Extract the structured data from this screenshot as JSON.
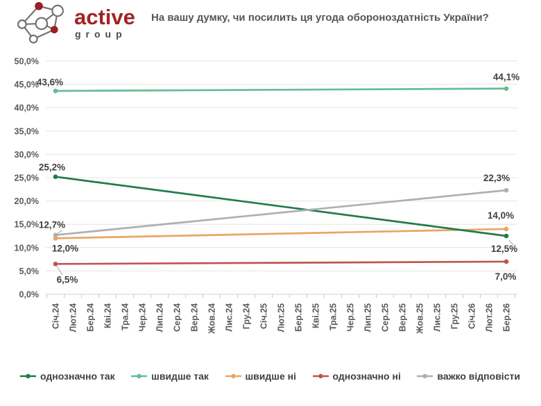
{
  "logo": {
    "brand": "active",
    "subtext": "group"
  },
  "chart_data": {
    "type": "line",
    "title": "На вашу думку, чи посилить ця угода обороноздатність України?",
    "x_categories": [
      "Січ.24",
      "Лют.24",
      "Бер.24",
      "Кві.24",
      "Тра.24",
      "Чер.24",
      "Лип.24",
      "Сер.24",
      "Вер.24",
      "Жов.24",
      "Лис.24",
      "Гру.24",
      "Січ.25",
      "Лют.25",
      "Бер.25",
      "Кві.25",
      "Тра.25",
      "Чер.25",
      "Лип.25",
      "Сер.25",
      "Вер.25",
      "Жов.25",
      "Лис.25",
      "Гру.25",
      "Січ.26",
      "Лют.26",
      "Бер.26"
    ],
    "y_axis": {
      "min": 0,
      "max": 50,
      "step": 5,
      "grid": true,
      "tick_labels": [
        "0,0%",
        "5,0%",
        "10,0%",
        "15,0%",
        "20,0%",
        "25,0%",
        "30,0%",
        "35,0%",
        "40,0%",
        "45,0%",
        "50,0%"
      ]
    },
    "legend_position": "bottom",
    "x_label_rotation": -90,
    "series": [
      {
        "name": "однозначно так",
        "color": "#217A4B",
        "points": [
          {
            "x": "Січ.24",
            "y": 25.2
          },
          {
            "x": "Бер.26",
            "y": 12.5
          }
        ],
        "point_labels": [
          {
            "text": "25,2%",
            "dx": -5,
            "dy": -9
          },
          {
            "text": "12,5%",
            "dx": -3,
            "dy": 23,
            "leader": [
              4,
              6,
              11,
              14
            ]
          }
        ]
      },
      {
        "name": "швидше так",
        "color": "#62BE92",
        "points": [
          {
            "x": "Січ.24",
            "y": 43.6
          },
          {
            "x": "Бер.26",
            "y": 44.1
          }
        ],
        "point_labels": [
          {
            "text": "43,6%",
            "dx": -8,
            "dy": -8
          },
          {
            "text": "44,1%",
            "dx": 0,
            "dy": -12
          }
        ]
      },
      {
        "name": "швидше ні",
        "color": "#E7A765",
        "points": [
          {
            "x": "Січ.24",
            "y": 12.0
          },
          {
            "x": "Бер.26",
            "y": 14.0
          }
        ],
        "point_labels": [
          {
            "text": "12,0%",
            "dx": 14,
            "dy": 19
          },
          {
            "text": "14,0%",
            "dx": -8,
            "dy": -15
          }
        ]
      },
      {
        "name": "однозначно ні",
        "color": "#BE554F",
        "points": [
          {
            "x": "Січ.24",
            "y": 6.5
          },
          {
            "x": "Бер.26",
            "y": 7.0
          }
        ],
        "point_labels": [
          {
            "text": "6,5%",
            "dx": 17,
            "dy": 27,
            "leader": [
              10,
              16,
              2,
              3
            ]
          },
          {
            "text": "7,0%",
            "dx": -1,
            "dy": 26
          }
        ]
      },
      {
        "name": "важко відповісти",
        "color": "#AFAFAF",
        "points": [
          {
            "x": "Січ.24",
            "y": 12.7
          },
          {
            "x": "Бер.26",
            "y": 22.3
          }
        ],
        "point_labels": [
          {
            "text": "12,7%",
            "dx": -5,
            "dy": -10,
            "leader": [
              10,
              -7,
              1,
              -1
            ]
          },
          {
            "text": "22,3%",
            "dx": -14,
            "dy": -13
          }
        ]
      }
    ]
  }
}
